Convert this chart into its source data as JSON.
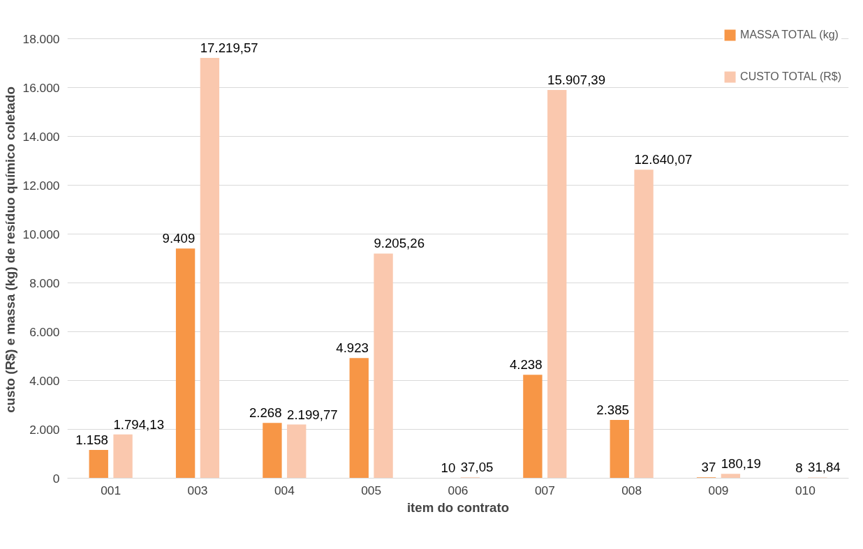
{
  "chart_data": {
    "type": "bar",
    "xlabel": "item do contrato",
    "ylabel": "custo (R$) e massa (kg) de resíduo químico coletado",
    "categories": [
      "001",
      "003",
      "004",
      "005",
      "006",
      "007",
      "008",
      "009",
      "010"
    ],
    "series": [
      {
        "name": "MASSA TOTAL (kg)",
        "color": "#f79646",
        "values": [
          1158,
          9409,
          2268,
          4923,
          10,
          4238,
          2385,
          37,
          8
        ],
        "value_labels": [
          "1.158",
          "9.409",
          "2.268",
          "4.923",
          "10",
          "4.238",
          "2.385",
          "37",
          "8"
        ]
      },
      {
        "name": "CUSTO TOTAL (R$)",
        "color": "#fac8ae",
        "values": [
          1794.13,
          17219.57,
          2199.77,
          9205.26,
          37.05,
          15907.39,
          12640.07,
          180.19,
          31.84
        ],
        "value_labels": [
          "1.794,13",
          "17.219,57",
          "2.199,77",
          "9.205,26",
          "37,05",
          "15.907,39",
          "12.640,07",
          "180,19",
          "31,84"
        ]
      }
    ],
    "ylim": [
      0,
      18000
    ],
    "yticks": [
      {
        "value": 0,
        "label": "0"
      },
      {
        "value": 2000,
        "label": "2.000"
      },
      {
        "value": 4000,
        "label": "4.000"
      },
      {
        "value": 6000,
        "label": "6.000"
      },
      {
        "value": 8000,
        "label": "8.000"
      },
      {
        "value": 10000,
        "label": "10.000"
      },
      {
        "value": 12000,
        "label": "12.000"
      },
      {
        "value": 14000,
        "label": "14.000"
      },
      {
        "value": 16000,
        "label": "16.000"
      },
      {
        "value": 18000,
        "label": "18.000"
      }
    ],
    "grid": "y",
    "legend": "top right"
  }
}
